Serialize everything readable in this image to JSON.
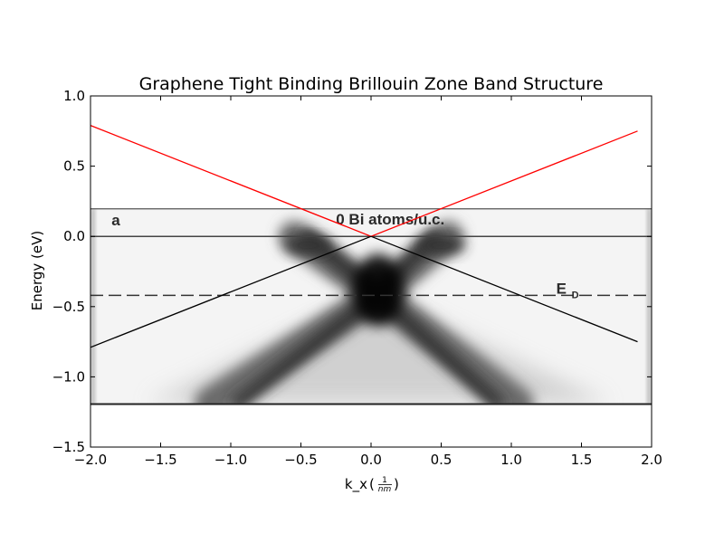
{
  "chart_data": {
    "type": "line",
    "title": "Graphene Tight Binding Brillouin Zone Band Structure",
    "xlabel": "k_x",
    "xlabel_unit": {
      "numerator": "1",
      "denominator": "nm"
    },
    "ylabel": "Energy (eV)",
    "xlim": [
      -2.0,
      2.0
    ],
    "ylim": [
      -1.5,
      1.0
    ],
    "xticks": [
      -2.0,
      -1.5,
      -1.0,
      -0.5,
      0.0,
      0.5,
      1.0,
      1.5,
      2.0
    ],
    "xtick_labels": [
      "−2.0",
      "−1.5",
      "−1.0",
      "−0.5",
      "0.0",
      "0.5",
      "1.0",
      "1.5",
      "2.0"
    ],
    "yticks": [
      1.0,
      0.5,
      0.0,
      -0.5,
      -1.0,
      -1.5
    ],
    "ytick_labels": [
      "1.0",
      "0.5",
      "0.0",
      "−0.5",
      "−1.0",
      "−1.5"
    ],
    "grid": false,
    "series": [
      {
        "color": "#ff0000",
        "x": [
          -2.0,
          0.0
        ],
        "y": [
          0.79,
          0.0
        ]
      },
      {
        "color": "#ff0000",
        "x": [
          0.0,
          1.9
        ],
        "y": [
          0.0,
          0.75
        ]
      },
      {
        "color": "#000000",
        "x": [
          -2.0,
          0.0
        ],
        "y": [
          -0.79,
          0.0
        ]
      },
      {
        "color": "#000000",
        "x": [
          0.0,
          1.9
        ],
        "y": [
          0.0,
          -0.75
        ]
      }
    ],
    "background_image": {
      "description_kind": "ARPES intensity map",
      "x_extent": [
        -2.0,
        2.0
      ],
      "y_extent": [
        -1.2,
        0.2
      ],
      "panel_label": "a",
      "header_text": "0 Bi atoms/u.c.",
      "fermi_line_y": 0.0,
      "dirac_line_y": -0.42,
      "dirac_label_main": "E",
      "dirac_label_sub": "D"
    }
  }
}
